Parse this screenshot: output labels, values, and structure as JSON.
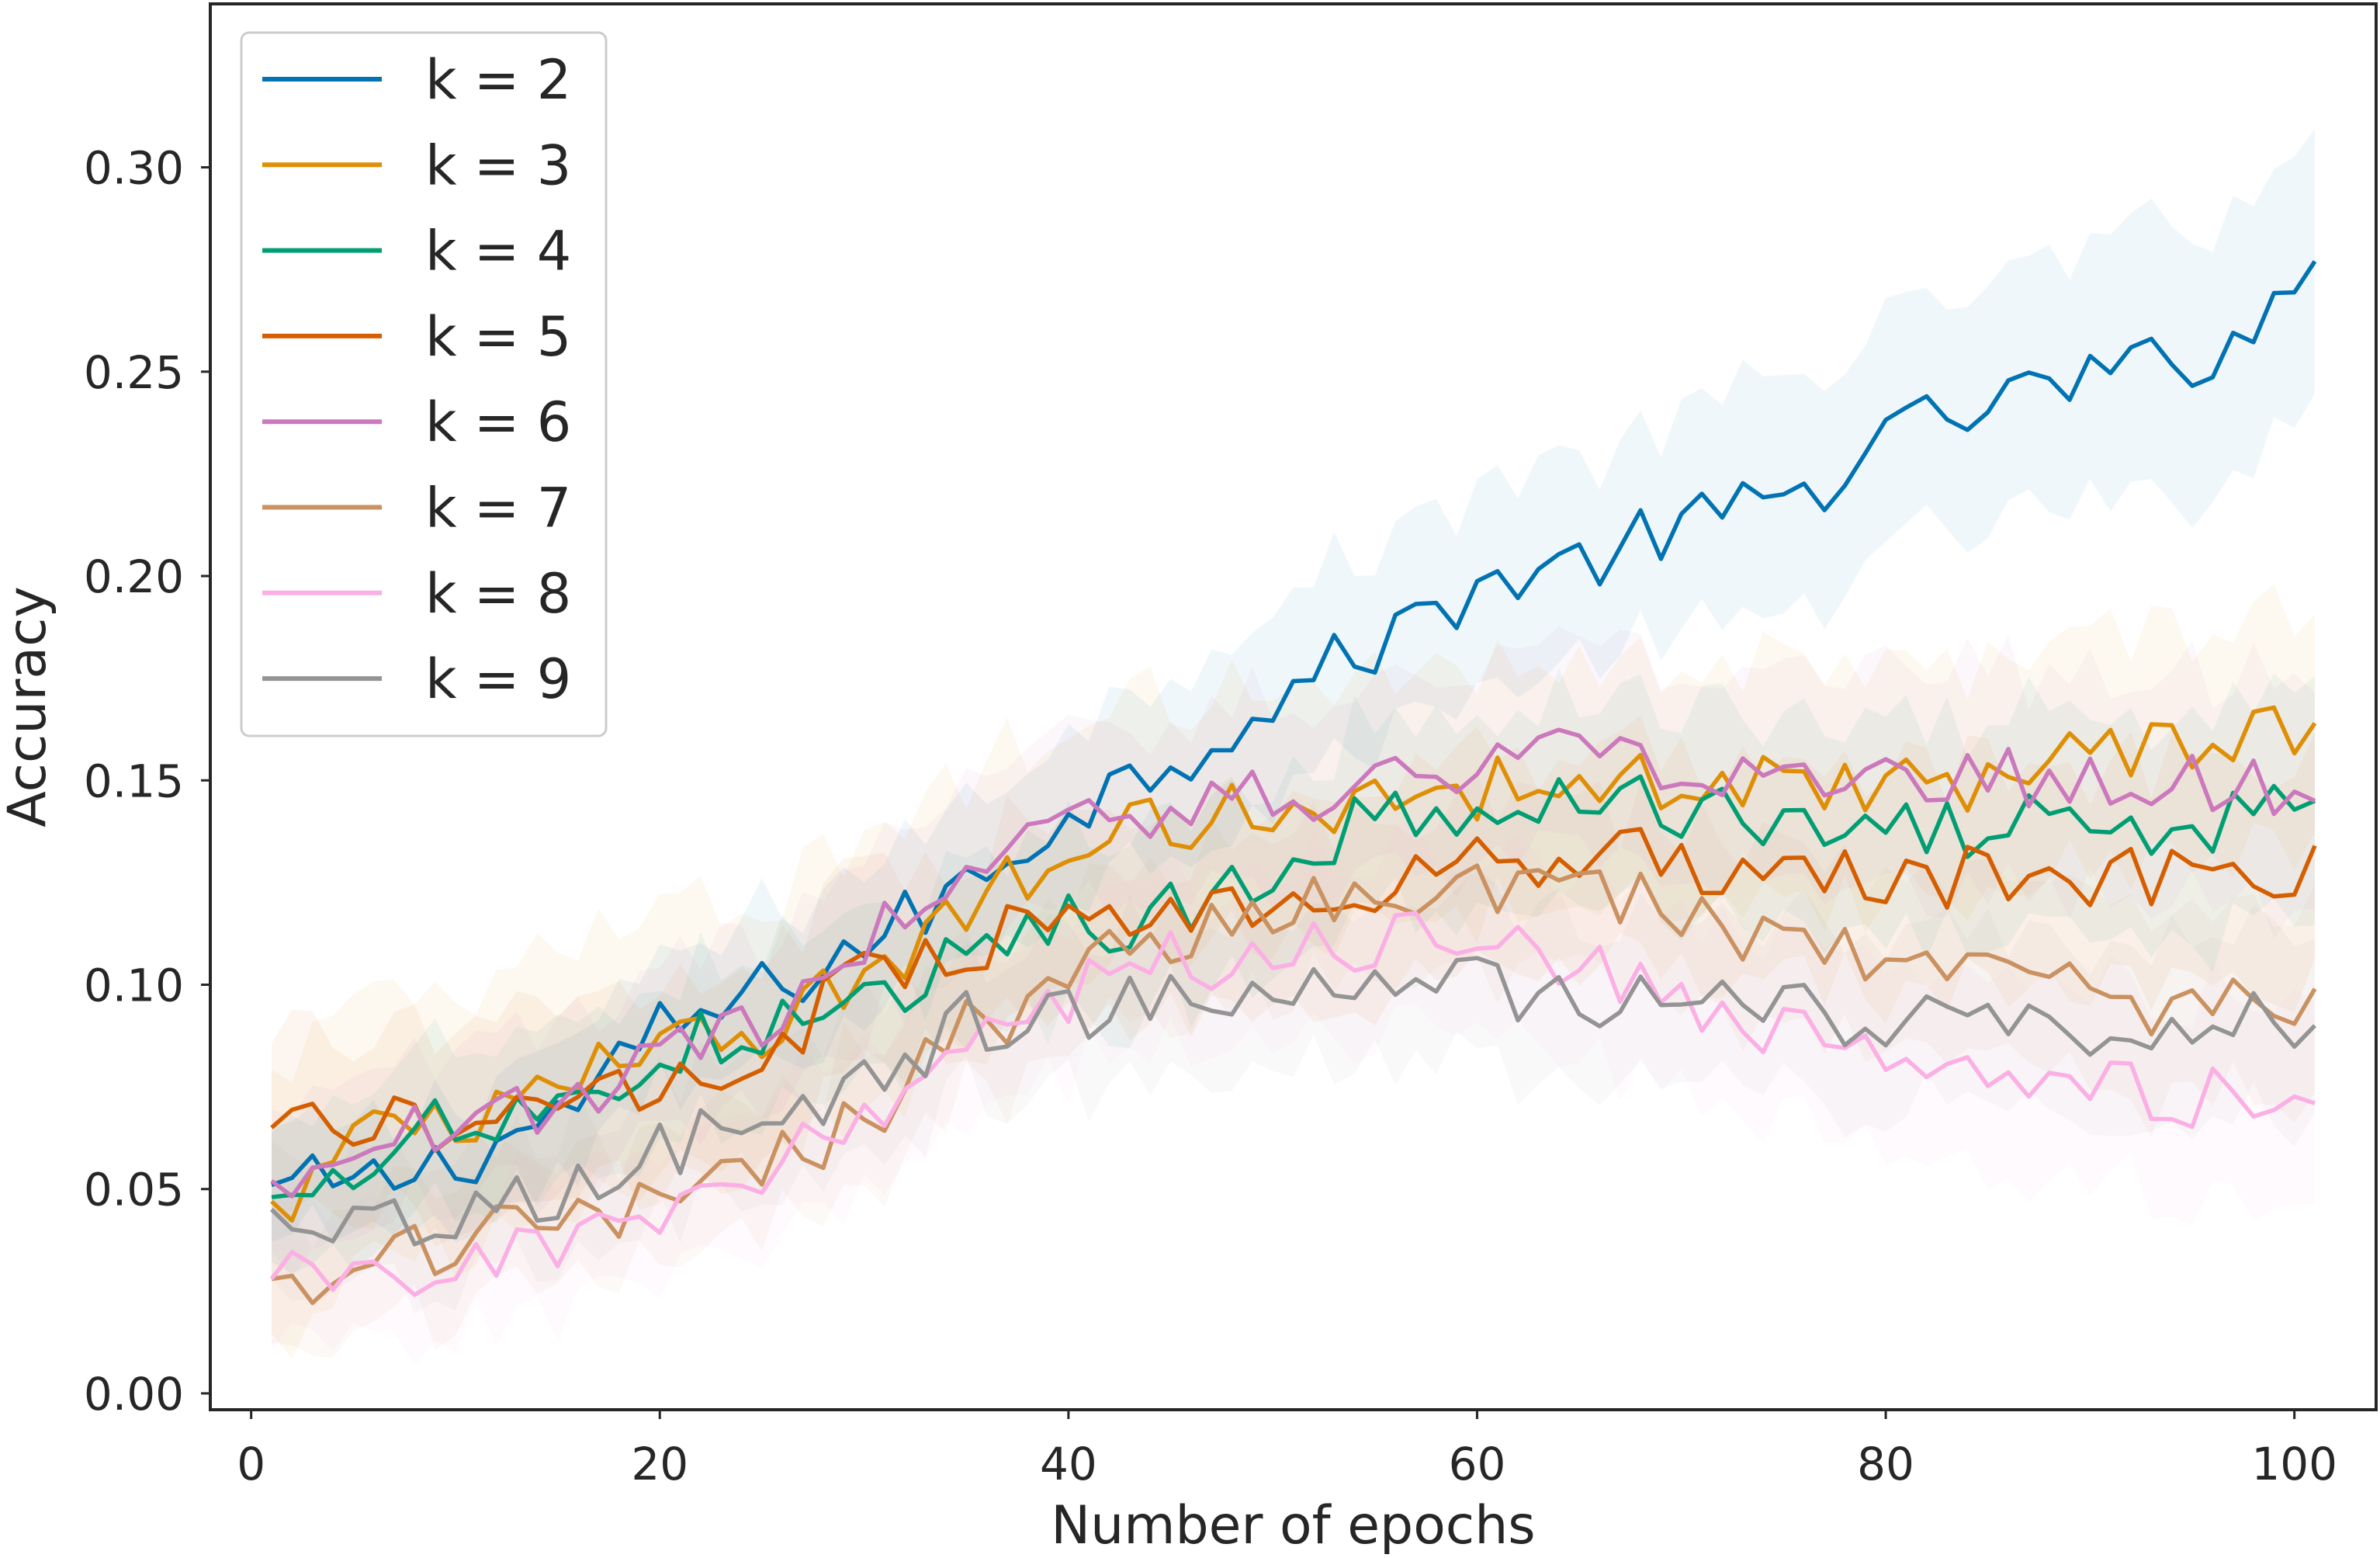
{
  "chart_data": {
    "type": "line",
    "title": "",
    "xlabel": "Number of epochs",
    "ylabel": "Accuracy",
    "xlim": [
      -2,
      104
    ],
    "ylim": [
      -0.004,
      0.34
    ],
    "x_ticks": [
      0,
      20,
      40,
      60,
      80,
      100
    ],
    "y_ticks": [
      0.0,
      0.05,
      0.1,
      0.15,
      0.2,
      0.25,
      0.3
    ],
    "x_tick_labels": [
      "0",
      "20",
      "40",
      "60",
      "80",
      "100"
    ],
    "y_tick_labels": [
      "0.00",
      "0.05",
      "0.10",
      "0.15",
      "0.20",
      "0.25",
      "0.30"
    ],
    "grid": false,
    "legend_position": "top-left",
    "x_start": 1,
    "x_end": 101,
    "series": [
      {
        "name": "k = 2",
        "color": "#0173b2",
        "band_halfwidth_start": 0.01,
        "band_halfwidth_end": 0.03,
        "anchors": [
          [
            1,
            0.051
          ],
          [
            5,
            0.05
          ],
          [
            10,
            0.057
          ],
          [
            15,
            0.068
          ],
          [
            20,
            0.088
          ],
          [
            25,
            0.098
          ],
          [
            30,
            0.11
          ],
          [
            35,
            0.124
          ],
          [
            40,
            0.143
          ],
          [
            45,
            0.155
          ],
          [
            50,
            0.17
          ],
          [
            55,
            0.183
          ],
          [
            60,
            0.198
          ],
          [
            65,
            0.203
          ],
          [
            70,
            0.212
          ],
          [
            75,
            0.218
          ],
          [
            80,
            0.233
          ],
          [
            85,
            0.242
          ],
          [
            90,
            0.248
          ],
          [
            95,
            0.253
          ],
          [
            100,
            0.268
          ],
          [
            101,
            0.277
          ]
        ]
      },
      {
        "name": "k = 3",
        "color": "#de8f05",
        "band_halfwidth_start": 0.03,
        "band_halfwidth_end": 0.025,
        "anchors": [
          [
            1,
            0.047
          ],
          [
            5,
            0.06
          ],
          [
            10,
            0.066
          ],
          [
            15,
            0.073
          ],
          [
            20,
            0.085
          ],
          [
            25,
            0.09
          ],
          [
            30,
            0.103
          ],
          [
            35,
            0.118
          ],
          [
            40,
            0.135
          ],
          [
            45,
            0.14
          ],
          [
            50,
            0.143
          ],
          [
            55,
            0.146
          ],
          [
            60,
            0.148
          ],
          [
            65,
            0.15
          ],
          [
            70,
            0.148
          ],
          [
            75,
            0.15
          ],
          [
            80,
            0.15
          ],
          [
            85,
            0.148
          ],
          [
            90,
            0.155
          ],
          [
            95,
            0.157
          ],
          [
            100,
            0.163
          ],
          [
            101,
            0.164
          ]
        ]
      },
      {
        "name": "k = 4",
        "color": "#029e73",
        "band_halfwidth_start": 0.015,
        "band_halfwidth_end": 0.025,
        "anchors": [
          [
            1,
            0.048
          ],
          [
            5,
            0.058
          ],
          [
            10,
            0.066
          ],
          [
            15,
            0.072
          ],
          [
            20,
            0.082
          ],
          [
            25,
            0.09
          ],
          [
            30,
            0.096
          ],
          [
            35,
            0.105
          ],
          [
            40,
            0.114
          ],
          [
            45,
            0.118
          ],
          [
            50,
            0.128
          ],
          [
            55,
            0.142
          ],
          [
            60,
            0.143
          ],
          [
            65,
            0.145
          ],
          [
            70,
            0.143
          ],
          [
            75,
            0.14
          ],
          [
            80,
            0.14
          ],
          [
            85,
            0.138
          ],
          [
            90,
            0.14
          ],
          [
            95,
            0.14
          ],
          [
            100,
            0.141
          ],
          [
            101,
            0.145
          ]
        ]
      },
      {
        "name": "k = 5",
        "color": "#d55e00",
        "band_halfwidth_start": 0.02,
        "band_halfwidth_end": 0.025,
        "anchors": [
          [
            1,
            0.065
          ],
          [
            5,
            0.066
          ],
          [
            10,
            0.067
          ],
          [
            15,
            0.07
          ],
          [
            20,
            0.078
          ],
          [
            25,
            0.085
          ],
          [
            30,
            0.1
          ],
          [
            35,
            0.11
          ],
          [
            40,
            0.115
          ],
          [
            45,
            0.118
          ],
          [
            50,
            0.123
          ],
          [
            55,
            0.125
          ],
          [
            60,
            0.128
          ],
          [
            65,
            0.133
          ],
          [
            70,
            0.13
          ],
          [
            75,
            0.128
          ],
          [
            80,
            0.127
          ],
          [
            85,
            0.126
          ],
          [
            90,
            0.126
          ],
          [
            95,
            0.128
          ],
          [
            100,
            0.128
          ],
          [
            101,
            0.134
          ]
        ]
      },
      {
        "name": "k = 6",
        "color": "#cc78bc",
        "band_halfwidth_start": 0.015,
        "band_halfwidth_end": 0.025,
        "anchors": [
          [
            1,
            0.052
          ],
          [
            5,
            0.06
          ],
          [
            10,
            0.067
          ],
          [
            15,
            0.072
          ],
          [
            20,
            0.08
          ],
          [
            25,
            0.09
          ],
          [
            30,
            0.11
          ],
          [
            35,
            0.128
          ],
          [
            40,
            0.142
          ],
          [
            45,
            0.144
          ],
          [
            50,
            0.146
          ],
          [
            55,
            0.15
          ],
          [
            60,
            0.152
          ],
          [
            65,
            0.155
          ],
          [
            70,
            0.15
          ],
          [
            75,
            0.15
          ],
          [
            80,
            0.15
          ],
          [
            85,
            0.15
          ],
          [
            90,
            0.15
          ],
          [
            95,
            0.152
          ],
          [
            100,
            0.145
          ],
          [
            101,
            0.145
          ]
        ]
      },
      {
        "name": "k = 7",
        "color": "#ca9161",
        "band_halfwidth_start": 0.012,
        "band_halfwidth_end": 0.02,
        "anchors": [
          [
            1,
            0.028
          ],
          [
            5,
            0.03
          ],
          [
            10,
            0.035
          ],
          [
            15,
            0.043
          ],
          [
            20,
            0.048
          ],
          [
            25,
            0.055
          ],
          [
            30,
            0.068
          ],
          [
            35,
            0.088
          ],
          [
            40,
            0.102
          ],
          [
            45,
            0.11
          ],
          [
            50,
            0.117
          ],
          [
            55,
            0.122
          ],
          [
            60,
            0.122
          ],
          [
            65,
            0.125
          ],
          [
            70,
            0.118
          ],
          [
            75,
            0.11
          ],
          [
            80,
            0.105
          ],
          [
            85,
            0.102
          ],
          [
            90,
            0.098
          ],
          [
            95,
            0.092
          ],
          [
            100,
            0.096
          ],
          [
            101,
            0.099
          ]
        ]
      },
      {
        "name": "k = 8",
        "color": "#fbafe4",
        "band_halfwidth_start": 0.012,
        "band_halfwidth_end": 0.022,
        "anchors": [
          [
            1,
            0.028
          ],
          [
            5,
            0.029
          ],
          [
            10,
            0.031
          ],
          [
            15,
            0.035
          ],
          [
            20,
            0.043
          ],
          [
            25,
            0.052
          ],
          [
            30,
            0.068
          ],
          [
            35,
            0.085
          ],
          [
            40,
            0.097
          ],
          [
            45,
            0.105
          ],
          [
            50,
            0.108
          ],
          [
            55,
            0.112
          ],
          [
            60,
            0.11
          ],
          [
            65,
            0.105
          ],
          [
            70,
            0.095
          ],
          [
            75,
            0.09
          ],
          [
            80,
            0.082
          ],
          [
            85,
            0.078
          ],
          [
            90,
            0.075
          ],
          [
            95,
            0.072
          ],
          [
            100,
            0.07
          ],
          [
            101,
            0.071
          ]
        ]
      },
      {
        "name": "k = 9",
        "color": "#949494",
        "band_halfwidth_start": 0.012,
        "band_halfwidth_end": 0.02,
        "anchors": [
          [
            1,
            0.045
          ],
          [
            5,
            0.04
          ],
          [
            10,
            0.041
          ],
          [
            15,
            0.048
          ],
          [
            20,
            0.058
          ],
          [
            25,
            0.068
          ],
          [
            30,
            0.075
          ],
          [
            35,
            0.092
          ],
          [
            40,
            0.092
          ],
          [
            45,
            0.098
          ],
          [
            50,
            0.1
          ],
          [
            55,
            0.1
          ],
          [
            60,
            0.1
          ],
          [
            65,
            0.098
          ],
          [
            70,
            0.095
          ],
          [
            75,
            0.095
          ],
          [
            80,
            0.092
          ],
          [
            85,
            0.09
          ],
          [
            90,
            0.09
          ],
          [
            95,
            0.09
          ],
          [
            100,
            0.09
          ],
          [
            101,
            0.09
          ]
        ]
      }
    ]
  }
}
